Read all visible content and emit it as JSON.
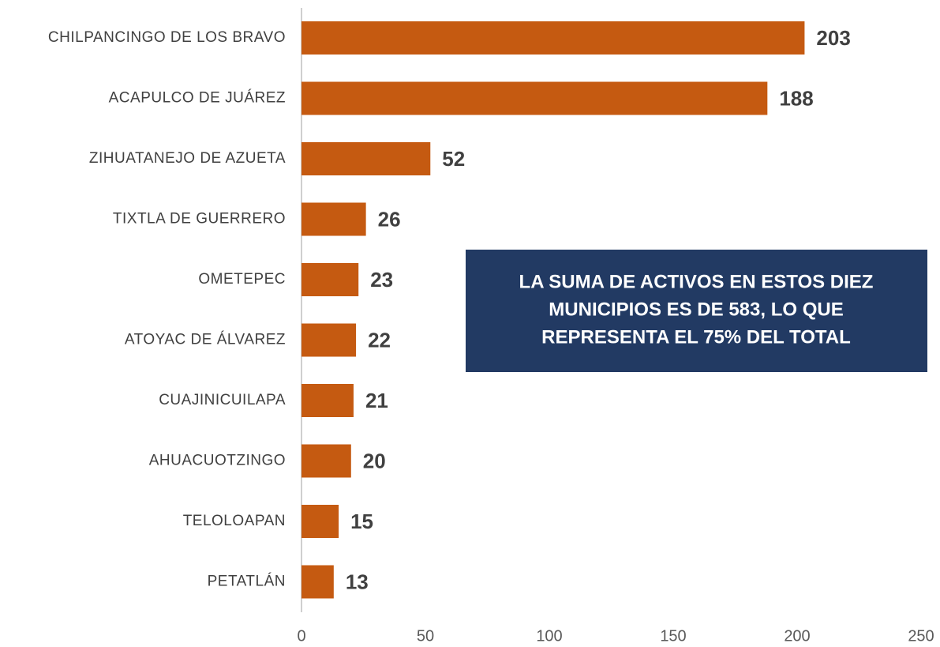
{
  "chart_data": {
    "type": "bar",
    "orientation": "horizontal",
    "categories": [
      "CHILPANCINGO DE LOS BRAVO",
      "ACAPULCO DE JUÁREZ",
      "ZIHUATANEJO DE AZUETA",
      "TIXTLA DE GUERRERO",
      "OMETEPEC",
      "ATOYAC DE ÁLVAREZ",
      "CUAJINICUILAPA",
      "AHUACUOTZINGO",
      "TELOLOAPAN",
      "PETATLÁN"
    ],
    "values": [
      203,
      188,
      52,
      26,
      23,
      22,
      21,
      20,
      15,
      13
    ],
    "color": "#c55a11",
    "xlim": [
      0,
      250
    ],
    "xticks": [
      0,
      50,
      100,
      150,
      200,
      250
    ],
    "grid": false,
    "annotation": [
      "LA SUMA DE ACTIVOS EN ESTOS DIEZ",
      "MUNICIPIOS ES DE 583, LO QUE",
      "REPRESENTA EL 75% DEL TOTAL"
    ]
  }
}
